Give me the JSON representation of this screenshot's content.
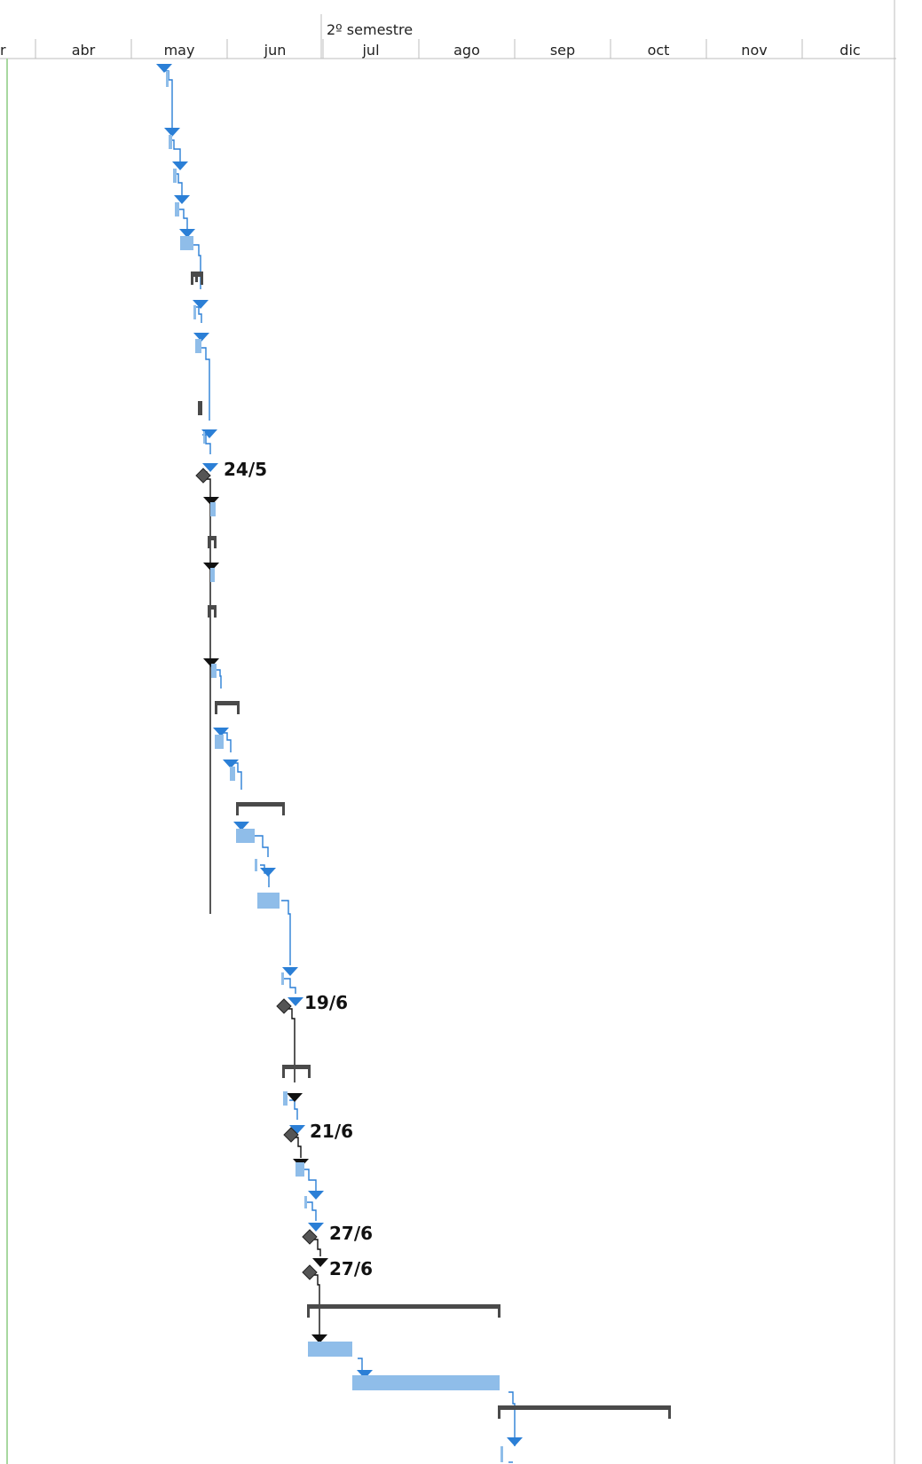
{
  "timescale": {
    "period_label": "2º semestre",
    "months": [
      {
        "id": "mar",
        "label": "r"
      },
      {
        "id": "abr",
        "label": "abr"
      },
      {
        "id": "may",
        "label": "may"
      },
      {
        "id": "jun",
        "label": "jun"
      },
      {
        "id": "jul",
        "label": "jul"
      },
      {
        "id": "ago",
        "label": "ago"
      },
      {
        "id": "sep",
        "label": "sep"
      },
      {
        "id": "oct",
        "label": "oct"
      },
      {
        "id": "nov",
        "label": "nov"
      },
      {
        "id": "dic",
        "label": "dic"
      }
    ]
  },
  "colors": {
    "task_bar": "#8fbde9",
    "task_link": "#2b7fd6",
    "summary_bar": "#4a4a4a",
    "milestone": "#555555",
    "milestone_link": "#111111",
    "grid_line": "#bdbdbd",
    "current_date_line": "#a8d8a0"
  },
  "milestones": [
    {
      "label": "24/5"
    },
    {
      "label": "19/6"
    },
    {
      "label": "21/6"
    },
    {
      "label": "27/6"
    },
    {
      "label": "27/6"
    }
  ]
}
